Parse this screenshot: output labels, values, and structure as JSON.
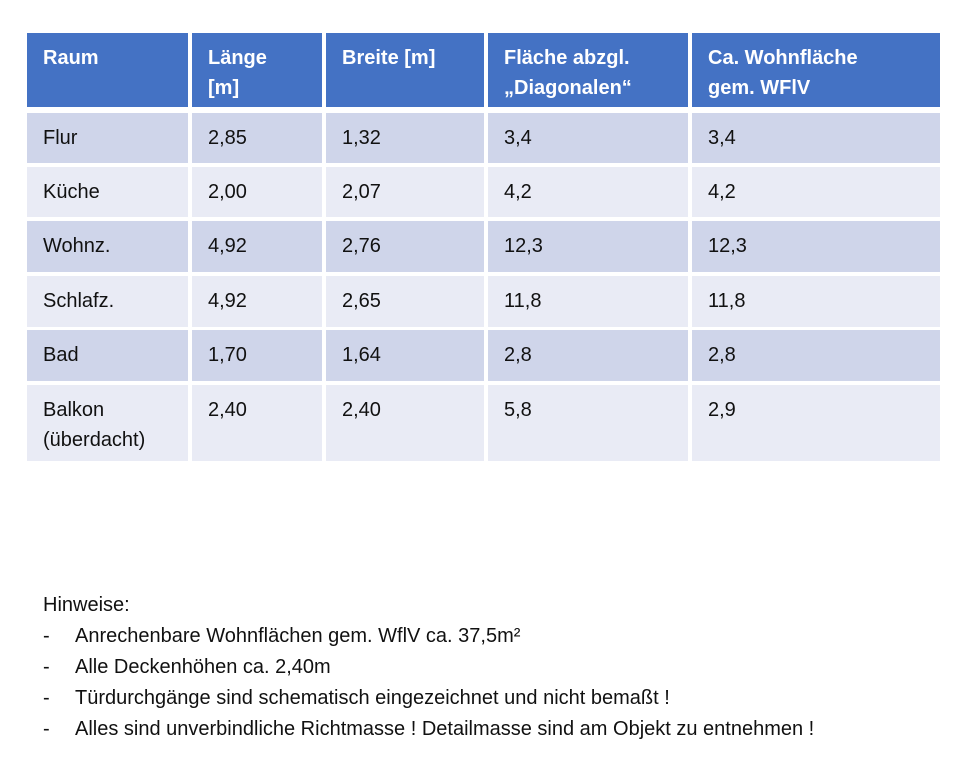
{
  "table": {
    "header": [
      "Raum",
      "Länge\n[m]",
      "Breite [m]",
      "Fläche abzgl.\n„Diagonalen“",
      "Ca. Wohnfläche\ngem. WFlV"
    ],
    "rows": [
      [
        "Flur",
        "2,85",
        "1,32",
        "3,4",
        "3,4"
      ],
      [
        "Küche",
        "2,00",
        "2,07",
        "4,2",
        "4,2"
      ],
      [
        "Wohnz.",
        "4,92",
        "2,76",
        "12,3",
        "12,3"
      ],
      [
        "Schlafz.",
        "4,92",
        "2,65",
        "11,8",
        "11,8"
      ],
      [
        "Bad",
        "1,70",
        "1,64",
        "2,8",
        "2,8"
      ],
      [
        "Balkon\n(überdacht)",
        "2,40",
        "2,40",
        "5,8",
        "2,9"
      ]
    ]
  },
  "notes": {
    "title": "Hinweise:",
    "items": [
      "Anrechenbare Wohnflächen gem. WflV ca. 37,5m²",
      "Alle Deckenhöhen ca. 2,40m",
      "Türdurchgänge sind schematisch eingezeichnet und nicht bemaßt !",
      "Alles sind unverbindliche Richtmasse ! Detailmasse sind am Objekt zu entnehmen !"
    ]
  }
}
